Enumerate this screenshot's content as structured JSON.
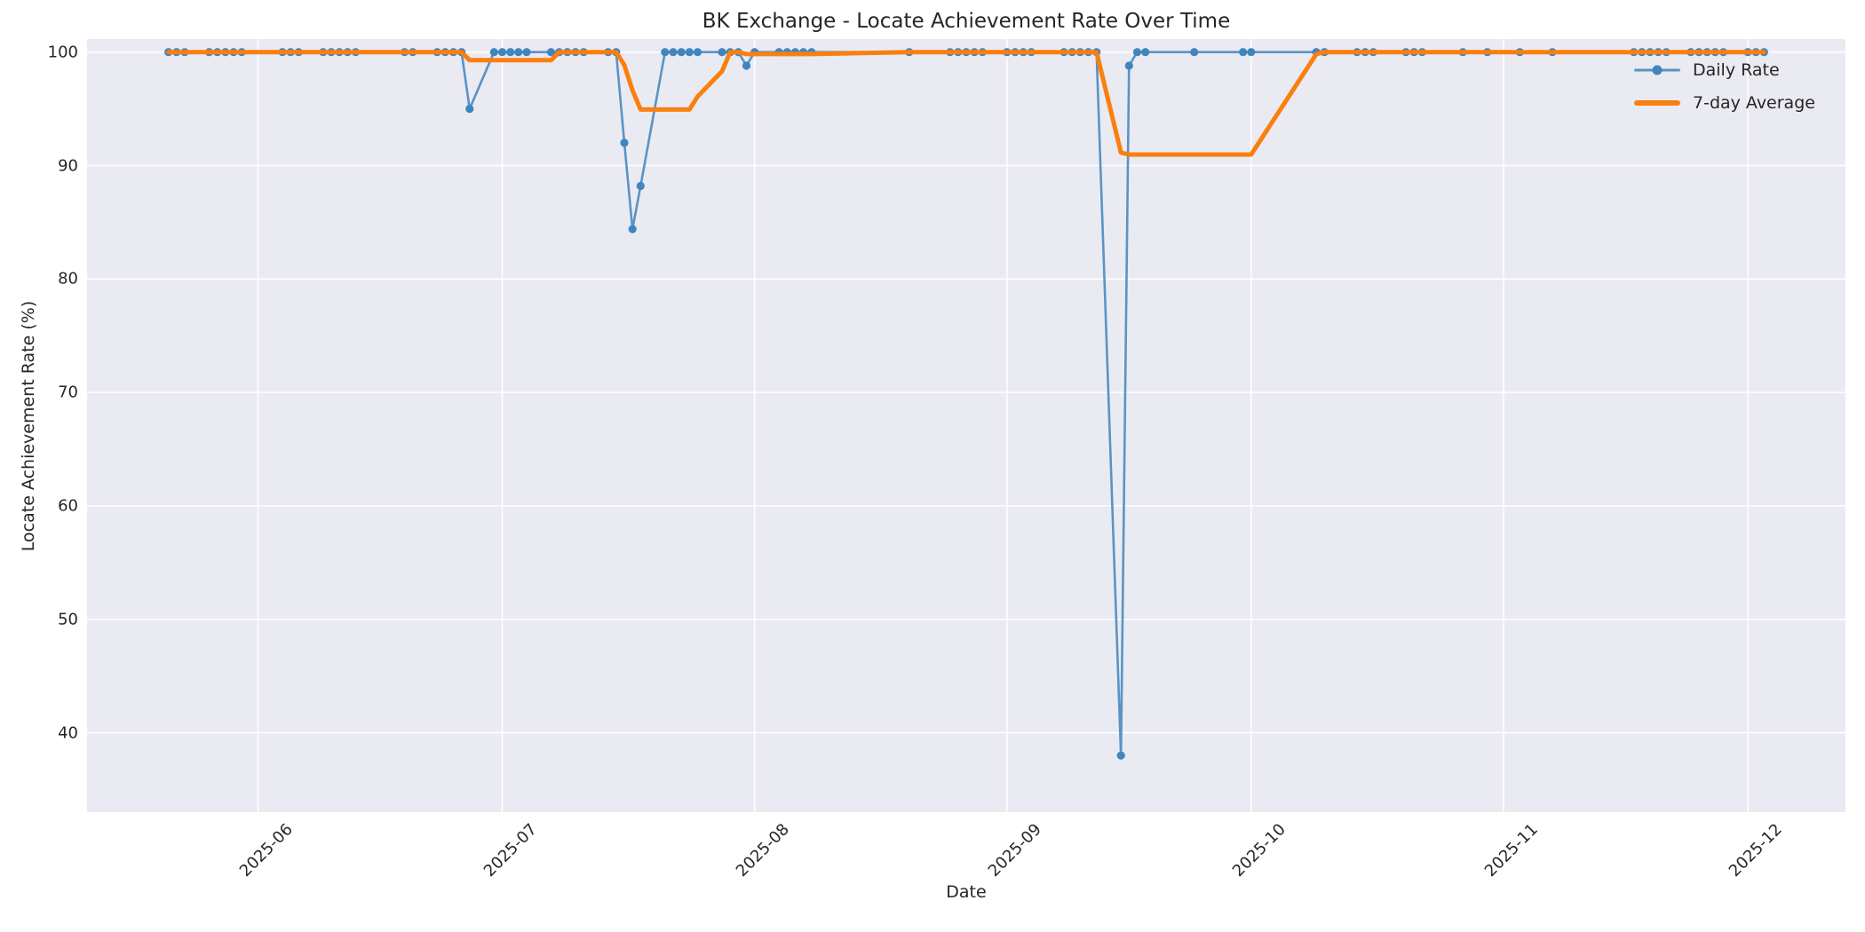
{
  "chart_data": {
    "type": "line",
    "title": "BK Exchange - Locate Achievement Rate Over Time",
    "xlabel": "Date",
    "ylabel": "Locate Achievement Rate (%)",
    "grid": true,
    "legend_position": "upper right",
    "ylim": [
      33.0,
      101.15
    ],
    "xlim": [
      "2025-05-11",
      "2025-12-13"
    ],
    "yticks": [
      100,
      90,
      80,
      70,
      60,
      50,
      40
    ],
    "xticks": [
      {
        "date": "2025-06-01",
        "label": "2025-06"
      },
      {
        "date": "2025-07-01",
        "label": "2025-07"
      },
      {
        "date": "2025-08-01",
        "label": "2025-08"
      },
      {
        "date": "2025-09-01",
        "label": "2025-09"
      },
      {
        "date": "2025-10-01",
        "label": "2025-10"
      },
      {
        "date": "2025-11-01",
        "label": "2025-11"
      },
      {
        "date": "2025-12-01",
        "label": "2025-12"
      }
    ],
    "colors": {
      "axes_background": "#eaeaf2",
      "gridline": "#ffffff",
      "text": "#262626",
      "daily_rate_line": "#5b93c4",
      "daily_rate_marker": "#4086be",
      "seven_day_average": "#fa7f0e"
    },
    "series": [
      {
        "name": "Daily Rate",
        "style": "line+markers",
        "color": "#5b93c4",
        "marker_color": "#4086be",
        "line_width": 2.6,
        "marker_radius": 4.6,
        "points": [
          [
            "2025-05-21",
            100
          ],
          [
            "2025-05-22",
            100
          ],
          [
            "2025-05-23",
            100
          ],
          [
            "2025-05-26",
            100
          ],
          [
            "2025-05-27",
            100
          ],
          [
            "2025-05-28",
            100
          ],
          [
            "2025-05-29",
            100
          ],
          [
            "2025-05-30",
            100
          ],
          [
            "2025-06-04",
            100
          ],
          [
            "2025-06-05",
            100
          ],
          [
            "2025-06-06",
            100
          ],
          [
            "2025-06-09",
            100
          ],
          [
            "2025-06-10",
            100
          ],
          [
            "2025-06-11",
            100
          ],
          [
            "2025-06-12",
            100
          ],
          [
            "2025-06-13",
            100
          ],
          [
            "2025-06-19",
            100
          ],
          [
            "2025-06-20",
            100
          ],
          [
            "2025-06-23",
            100
          ],
          [
            "2025-06-24",
            100
          ],
          [
            "2025-06-25",
            100
          ],
          [
            "2025-06-26",
            100
          ],
          [
            "2025-06-27",
            95.0
          ],
          [
            "2025-06-30",
            100
          ],
          [
            "2025-07-01",
            100
          ],
          [
            "2025-07-02",
            100
          ],
          [
            "2025-07-03",
            100
          ],
          [
            "2025-07-04",
            100
          ],
          [
            "2025-07-07",
            100
          ],
          [
            "2025-07-08",
            100
          ],
          [
            "2025-07-09",
            100
          ],
          [
            "2025-07-10",
            100
          ],
          [
            "2025-07-11",
            100
          ],
          [
            "2025-07-14",
            100
          ],
          [
            "2025-07-15",
            100
          ],
          [
            "2025-07-16",
            92.0
          ],
          [
            "2025-07-17",
            84.4
          ],
          [
            "2025-07-18",
            88.2
          ],
          [
            "2025-07-21",
            100
          ],
          [
            "2025-07-22",
            100
          ],
          [
            "2025-07-23",
            100
          ],
          [
            "2025-07-24",
            100
          ],
          [
            "2025-07-25",
            100
          ],
          [
            "2025-07-28",
            100
          ],
          [
            "2025-07-29",
            100
          ],
          [
            "2025-07-30",
            100
          ],
          [
            "2025-07-31",
            98.8
          ],
          [
            "2025-08-01",
            100
          ],
          [
            "2025-08-04",
            100
          ],
          [
            "2025-08-05",
            100
          ],
          [
            "2025-08-06",
            100
          ],
          [
            "2025-08-07",
            100
          ],
          [
            "2025-08-08",
            100
          ],
          [
            "2025-08-20",
            100
          ],
          [
            "2025-08-25",
            100
          ],
          [
            "2025-08-26",
            100
          ],
          [
            "2025-08-27",
            100
          ],
          [
            "2025-08-28",
            100
          ],
          [
            "2025-08-29",
            100
          ],
          [
            "2025-09-01",
            100
          ],
          [
            "2025-09-02",
            100
          ],
          [
            "2025-09-03",
            100
          ],
          [
            "2025-09-04",
            100
          ],
          [
            "2025-09-08",
            100
          ],
          [
            "2025-09-09",
            100
          ],
          [
            "2025-09-10",
            100
          ],
          [
            "2025-09-11",
            100
          ],
          [
            "2025-09-12",
            100
          ],
          [
            "2025-09-15",
            38.0
          ],
          [
            "2025-09-16",
            98.8
          ],
          [
            "2025-09-17",
            100
          ],
          [
            "2025-09-18",
            100
          ],
          [
            "2025-09-24",
            100
          ],
          [
            "2025-09-30",
            100
          ],
          [
            "2025-10-01",
            100
          ],
          [
            "2025-10-09",
            100
          ],
          [
            "2025-10-10",
            100
          ],
          [
            "2025-10-14",
            100
          ],
          [
            "2025-10-15",
            100
          ],
          [
            "2025-10-16",
            100
          ],
          [
            "2025-10-20",
            100
          ],
          [
            "2025-10-21",
            100
          ],
          [
            "2025-10-22",
            100
          ],
          [
            "2025-10-27",
            100
          ],
          [
            "2025-10-30",
            100
          ],
          [
            "2025-11-03",
            100
          ],
          [
            "2025-11-07",
            100
          ],
          [
            "2025-11-17",
            100
          ],
          [
            "2025-11-18",
            100
          ],
          [
            "2025-11-19",
            100
          ],
          [
            "2025-11-20",
            100
          ],
          [
            "2025-11-21",
            100
          ],
          [
            "2025-11-24",
            100
          ],
          [
            "2025-11-25",
            100
          ],
          [
            "2025-11-26",
            100
          ],
          [
            "2025-11-27",
            100
          ],
          [
            "2025-11-28",
            100
          ],
          [
            "2025-12-01",
            100
          ],
          [
            "2025-12-02",
            100
          ],
          [
            "2025-12-03",
            100
          ]
        ]
      },
      {
        "name": "7-day Average",
        "style": "line",
        "color": "#fa7f0e",
        "line_width": 5,
        "points": [
          [
            "2025-05-21",
            100
          ],
          [
            "2025-06-26",
            100
          ],
          [
            "2025-06-27",
            99.29
          ],
          [
            "2025-07-07",
            99.29
          ],
          [
            "2025-07-08",
            100
          ],
          [
            "2025-07-15",
            100
          ],
          [
            "2025-07-16",
            98.86
          ],
          [
            "2025-07-17",
            96.63
          ],
          [
            "2025-07-18",
            94.94
          ],
          [
            "2025-07-24",
            94.94
          ],
          [
            "2025-07-25",
            96.09
          ],
          [
            "2025-07-28",
            98.31
          ],
          [
            "2025-07-29",
            100
          ],
          [
            "2025-07-30",
            100
          ],
          [
            "2025-07-31",
            99.83
          ],
          [
            "2025-08-08",
            99.83
          ],
          [
            "2025-08-20",
            100
          ],
          [
            "2025-09-12",
            100
          ],
          [
            "2025-09-15",
            91.14
          ],
          [
            "2025-09-16",
            90.97
          ],
          [
            "2025-10-01",
            90.97
          ],
          [
            "2025-10-09",
            99.83
          ],
          [
            "2025-10-10",
            100
          ],
          [
            "2025-12-03",
            100
          ]
        ]
      }
    ]
  }
}
